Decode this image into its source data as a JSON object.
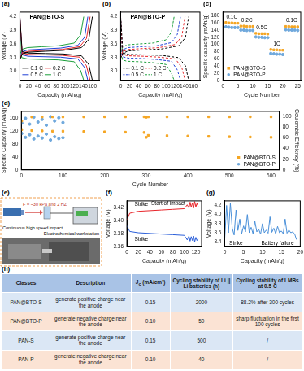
{
  "chart_data": [
    {
      "panel": "(a)",
      "type": "line",
      "title": "PAN@BTO-S",
      "x_label": "Capacity (mAh/g)",
      "y_label": "Voltage (V)",
      "xlim": [
        0,
        175
      ],
      "xticks": [
        0,
        20,
        40,
        60,
        80,
        100,
        120,
        140,
        160
      ],
      "ylim": [
        2.8,
        4.3
      ],
      "yticks": [
        {
          "value": 3.0,
          "label": "3.0"
        },
        3.3,
        3.6,
        3.9,
        4.2
      ],
      "grid": false,
      "legend": "lower left",
      "series": [
        {
          "name": "0.1 C",
          "color": "#000000",
          "line_style": "solid",
          "x": [
            0,
            5,
            19,
            56,
            96,
            136,
            152,
            160,
            null,
            0,
            5,
            19,
            56,
            96,
            136,
            152,
            160
          ],
          "values": [
            3.25,
            3.38,
            3.42,
            3.44,
            3.46,
            3.52,
            3.7,
            4.2,
            null,
            4.2,
            3.43,
            3.4,
            3.39,
            3.38,
            3.34,
            3.15,
            2.8
          ]
        },
        {
          "name": "0.2 C",
          "color": "#e8252a",
          "line_style": "solid",
          "x": [
            0,
            5,
            19,
            54,
            93,
            132,
            147,
            155,
            null,
            0,
            5,
            19,
            54,
            93,
            132,
            147,
            155
          ],
          "values": [
            3.27,
            3.4,
            3.44,
            3.46,
            3.48,
            3.54,
            3.72,
            4.2,
            null,
            4.2,
            3.4,
            3.37,
            3.36,
            3.35,
            3.31,
            3.12,
            2.8
          ]
        },
        {
          "name": "0.5 C",
          "color": "#1f3fd6",
          "line_style": "solid",
          "x": [
            0,
            5,
            18,
            53,
            90,
            128,
            143,
            150,
            null,
            0,
            5,
            18,
            53,
            90,
            128,
            143,
            150
          ],
          "values": [
            3.3,
            3.43,
            3.47,
            3.49,
            3.51,
            3.57,
            3.75,
            4.2,
            null,
            4.2,
            3.36,
            3.33,
            3.32,
            3.31,
            3.27,
            3.08,
            2.8
          ]
        },
        {
          "name": "1 C",
          "color": "#1a9e3a",
          "line_style": "solid",
          "x": [
            0,
            4,
            17,
            49,
            85,
            120,
            134,
            141,
            null,
            0,
            4,
            17,
            49,
            85,
            120,
            134,
            141
          ],
          "values": [
            3.35,
            3.48,
            3.52,
            3.54,
            3.56,
            3.62,
            3.8,
            4.2,
            null,
            4.2,
            3.3,
            3.27,
            3.26,
            3.25,
            3.21,
            3.02,
            2.8
          ]
        }
      ]
    },
    {
      "panel": "(b)",
      "type": "line",
      "title": "PAN@BTO-P",
      "x_label": "Capacity (mAh/g)",
      "y_label": "Voltage (V)",
      "xlim": [
        0,
        175
      ],
      "xticks": [
        0,
        20,
        40,
        60,
        80,
        100,
        120,
        140,
        160
      ],
      "ylim": [
        2.8,
        4.3
      ],
      "yticks": [
        {
          "value": 3.0,
          "label": "3.0"
        },
        3.3,
        3.6,
        3.9,
        4.2
      ],
      "grid": false,
      "legend": "lower left",
      "series": [
        {
          "name": "0.1 C",
          "color": "#000000",
          "line_style": "dashed",
          "x": [
            0,
            5,
            18,
            53,
            90,
            128,
            143,
            150,
            null,
            0,
            5,
            18,
            53,
            90,
            128,
            143,
            150
          ],
          "values": [
            3.28,
            3.4,
            3.45,
            3.47,
            3.49,
            3.56,
            3.74,
            4.2,
            null,
            4.2,
            3.4,
            3.37,
            3.36,
            3.35,
            3.3,
            3.12,
            2.8
          ]
        },
        {
          "name": "0.2 C",
          "color": "#e8252a",
          "line_style": "dashed",
          "x": [
            0,
            4,
            17,
            50,
            85,
            121,
            135,
            142,
            null,
            0,
            4,
            17,
            50,
            85,
            121,
            135,
            142
          ],
          "values": [
            3.3,
            3.43,
            3.48,
            3.5,
            3.52,
            3.59,
            3.77,
            4.2,
            null,
            4.2,
            3.37,
            3.34,
            3.33,
            3.31,
            3.27,
            3.08,
            2.8
          ]
        },
        {
          "name": "0.5 C",
          "color": "#1f3fd6",
          "line_style": "dashed",
          "x": [
            0,
            4,
            16,
            46,
            79,
            112,
            125,
            132,
            null,
            0,
            4,
            16,
            46,
            79,
            112,
            125,
            132
          ],
          "values": [
            3.34,
            3.47,
            3.52,
            3.54,
            3.56,
            3.63,
            3.81,
            4.2,
            null,
            4.2,
            3.32,
            3.29,
            3.28,
            3.26,
            3.22,
            3.03,
            2.8
          ]
        },
        {
          "name": "1 C",
          "color": "#1a9e3a",
          "line_style": "dashed",
          "x": [
            0,
            4,
            14,
            41,
            71,
            100,
            112,
            118,
            null,
            0,
            4,
            14,
            41,
            71,
            100,
            112,
            118
          ],
          "values": [
            3.4,
            3.53,
            3.58,
            3.6,
            3.62,
            3.69,
            3.86,
            4.2,
            null,
            4.2,
            3.25,
            3.22,
            3.21,
            3.19,
            3.15,
            2.96,
            2.8
          ]
        }
      ]
    },
    {
      "panel": "(c)",
      "type": "scatter",
      "x_label": "Cycle Number",
      "y_label": "Specific capacity (mAh/g)",
      "xlim": [
        0,
        26
      ],
      "xticks": [
        0,
        5,
        10,
        15,
        20,
        25
      ],
      "ylim": [
        0,
        190
      ],
      "yticks": [
        0,
        20,
        40,
        60,
        80,
        100,
        120,
        140,
        160,
        180
      ],
      "grid": false,
      "legend": "lower left",
      "annotations": [
        {
          "text": "0.1C",
          "x": 3,
          "y": 176
        },
        {
          "text": "0.2C",
          "x": 8,
          "y": 166
        },
        {
          "text": "0.5C",
          "x": 13,
          "y": 146
        },
        {
          "text": "1C",
          "x": 18,
          "y": 101
        },
        {
          "text": "0.1C",
          "x": 23,
          "y": 166
        }
      ],
      "series": [
        {
          "name": "PAN@BTO-S",
          "color": "#f5a623",
          "marker": "square",
          "x": [
            1,
            2,
            3,
            4,
            5,
            6,
            7,
            8,
            9,
            10,
            11,
            12,
            13,
            14,
            15,
            16,
            17,
            18,
            19,
            20,
            21,
            22,
            23,
            24,
            25
          ],
          "values": [
            161,
            160,
            160,
            159,
            159,
            151,
            151,
            150,
            150,
            150,
            131,
            130,
            130,
            130,
            129,
            86,
            85,
            85,
            84,
            84,
            150,
            150,
            149,
            149,
            149
          ]
        },
        {
          "name": "PAN@BTO-P",
          "color": "#6fa8dc",
          "marker": "circle",
          "x": [
            1,
            2,
            3,
            4,
            5,
            6,
            7,
            8,
            9,
            10,
            11,
            12,
            13,
            14,
            15,
            16,
            17,
            18,
            19,
            20,
            21,
            22,
            23,
            24,
            25
          ],
          "values": [
            149,
            148,
            147,
            147,
            147,
            140,
            140,
            139,
            139,
            139,
            121,
            120,
            120,
            119,
            119,
            75,
            74,
            73,
            73,
            72,
            141,
            140,
            140,
            140,
            139
          ]
        }
      ]
    },
    {
      "panel": "(d)",
      "type": "scatter",
      "x_label": "Cycle Number",
      "y_label": "Specific Capacity (mAh/g)",
      "y2_label": "Coulombic Efficiency (%)",
      "xlim": [
        0,
        620
      ],
      "xticks": [
        0,
        100,
        200,
        300,
        400,
        500,
        600
      ],
      "ylim": [
        0,
        180
      ],
      "yticks": [
        0,
        40,
        80,
        120,
        160
      ],
      "y2lim": [
        0,
        110
      ],
      "y2ticks": [
        0,
        20,
        40,
        60,
        80,
        100
      ],
      "grid": false,
      "legend": "lower right",
      "series": [
        {
          "name": "PAN@BTO-S",
          "color": "#f5a623",
          "marker": "square",
          "x": [
            1,
            25,
            50,
            75,
            100,
            150,
            200,
            250,
            295,
            300,
            305,
            350,
            400,
            450,
            500,
            550,
            600
          ],
          "values": [
            124,
            121,
            120,
            119,
            119,
            118,
            117,
            116,
            115,
            100,
            106,
            105,
            104,
            103,
            102,
            101,
            100
          ]
        },
        {
          "name": "PAN@BTO-S",
          "color": "#f5a623",
          "marker": "square",
          "axis": "y2",
          "x": [
            1,
            25,
            50,
            75,
            100,
            150,
            200,
            250,
            295,
            300,
            305,
            350,
            400,
            450,
            500,
            550,
            600
          ],
          "values": [
            92,
            99.5,
            99.6,
            99.7,
            99.7,
            99.7,
            99.8,
            99.8,
            99.8,
            99,
            99.7,
            99.8,
            99.8,
            99.8,
            99.8,
            99.8,
            99.8
          ]
        },
        {
          "name": "PAN@BTO-P",
          "color": "#6fa8dc",
          "marker": "circle",
          "x": [
            1,
            10,
            20,
            30,
            40,
            50,
            60,
            70,
            80,
            90,
            100
          ],
          "values": [
            112,
            100,
            108,
            95,
            104,
            98,
            110,
            92,
            102,
            96,
            99
          ]
        },
        {
          "name": "PAN@BTO-P",
          "color": "#6fa8dc",
          "marker": "circle",
          "axis": "y2",
          "x": [
            1,
            10,
            20,
            30,
            40,
            50,
            60,
            70,
            80,
            90,
            100
          ],
          "values": [
            88,
            97,
            86,
            99,
            90,
            95,
            84,
            100,
            92,
            98,
            89
          ]
        }
      ]
    },
    {
      "panel": "(f)",
      "type": "line",
      "x_label": "Capacity (mAh/g)",
      "y_label": "Voltage (V)",
      "xlim": [
        0,
        130
      ],
      "xticks": [
        0,
        20,
        40,
        60,
        80,
        100,
        120
      ],
      "ylim": [
        3.36,
        3.43
      ],
      "yticks": [
        3.36,
        3.38,
        {
          "value": 3.4,
          "label": "3.40"
        },
        3.42
      ],
      "grid": false,
      "annotations": [
        {
          "text": "Start of impact",
          "x": 72,
          "y": 3.426
        },
        {
          "text": "Strike",
          "x": 25,
          "y": 3.424
        },
        {
          "text": "Strike",
          "x": 25,
          "y": 3.371
        }
      ],
      "series": [
        {
          "color": "#e8252a",
          "x": [
            0,
            5,
            20,
            40,
            60,
            80,
            100,
            105,
            108,
            110,
            112,
            114,
            116,
            118,
            120,
            122,
            124
          ],
          "values": [
            3.4,
            3.411,
            3.414,
            3.415,
            3.416,
            3.417,
            3.418,
            3.424,
            3.419,
            3.428,
            3.42,
            3.427,
            3.419,
            3.429,
            3.421,
            3.426,
            3.422
          ]
        },
        {
          "color": "#2b5fd9",
          "x": [
            0,
            5,
            20,
            40,
            60,
            80,
            100,
            105,
            108,
            110,
            112,
            114,
            116,
            118,
            120,
            122,
            124
          ],
          "values": [
            3.392,
            3.383,
            3.381,
            3.38,
            3.379,
            3.378,
            3.377,
            3.37,
            3.376,
            3.368,
            3.375,
            3.369,
            3.376,
            3.367,
            3.374,
            3.369,
            3.372
          ]
        }
      ]
    },
    {
      "panel": "(g)",
      "type": "line",
      "x_label": "Capacity (mAh/g)",
      "y_label": "Voltage (V)",
      "xlim": [
        0,
        20
      ],
      "xticks": [
        0,
        5,
        10,
        15,
        20
      ],
      "ylim": [
        3.3,
        4.3
      ],
      "yticks": [
        3.4,
        3.6,
        3.8,
        {
          "value": 4.0,
          "label": "4.0"
        },
        4.2
      ],
      "grid": false,
      "annotations": [
        {
          "text": "Strike",
          "x": 3,
          "y": 3.36
        },
        {
          "text": "Battery failure",
          "x": 14,
          "y": 3.36
        }
      ],
      "series": [
        {
          "color": "#4a90d9",
          "x": [
            0,
            0.5,
            1,
            1.5,
            2,
            2.5,
            3,
            3.5,
            4,
            4.5,
            5,
            5.5,
            6,
            6.5,
            7,
            7.5,
            8,
            8.5,
            9,
            9.5,
            10,
            10.5,
            11,
            11.5,
            12,
            12.5,
            13,
            13.5,
            14,
            14.5,
            15,
            15.5,
            16,
            16.5,
            17,
            17.5,
            18,
            18.5,
            19
          ],
          "values": [
            3.45,
            4.2,
            3.6,
            4.25,
            3.7,
            3.55,
            4.1,
            3.65,
            3.9,
            3.58,
            3.75,
            3.62,
            4.0,
            3.6,
            3.72,
            3.58,
            3.85,
            3.62,
            3.68,
            3.57,
            3.8,
            3.6,
            3.66,
            3.59,
            3.95,
            3.61,
            3.7,
            3.58,
            3.74,
            3.6,
            3.64,
            3.58,
            3.9,
            3.59,
            3.66,
            3.6,
            3.62,
            3.58,
            3.45
          ]
        }
      ]
    }
  ],
  "diagram": {
    "panel": "(e)",
    "force": "F = ~30 kPa and 2 HZ",
    "caption": "Continuous high speed impact",
    "device": "Electrochemical workstation"
  },
  "table": {
    "panel": "(h)",
    "header": [
      "Classes",
      "Description",
      {
        "main": "J",
        "sub": "c",
        "tail": " (mA/cm²)"
      },
      "Cycling stability of Li || Li batteries (h)",
      "Cycling stability of LMBs at 0.5 C"
    ],
    "rows": [
      [
        "PAN@BTO-S",
        "generate positive charge near the anode",
        "0.15",
        "2000",
        "88.2% after 300 cycles"
      ],
      [
        "PAN@BTO-P",
        "generate negative charge near the anode",
        "0.10",
        "50",
        "sharp fluctuation in the first 100 cycles"
      ],
      [
        "PAN-S",
        "generate positive charge near the anode",
        "0.15",
        "500",
        "/"
      ],
      [
        "PAN-P",
        "generate negative charge near the anode",
        "0.10",
        "40",
        "/"
      ]
    ]
  }
}
